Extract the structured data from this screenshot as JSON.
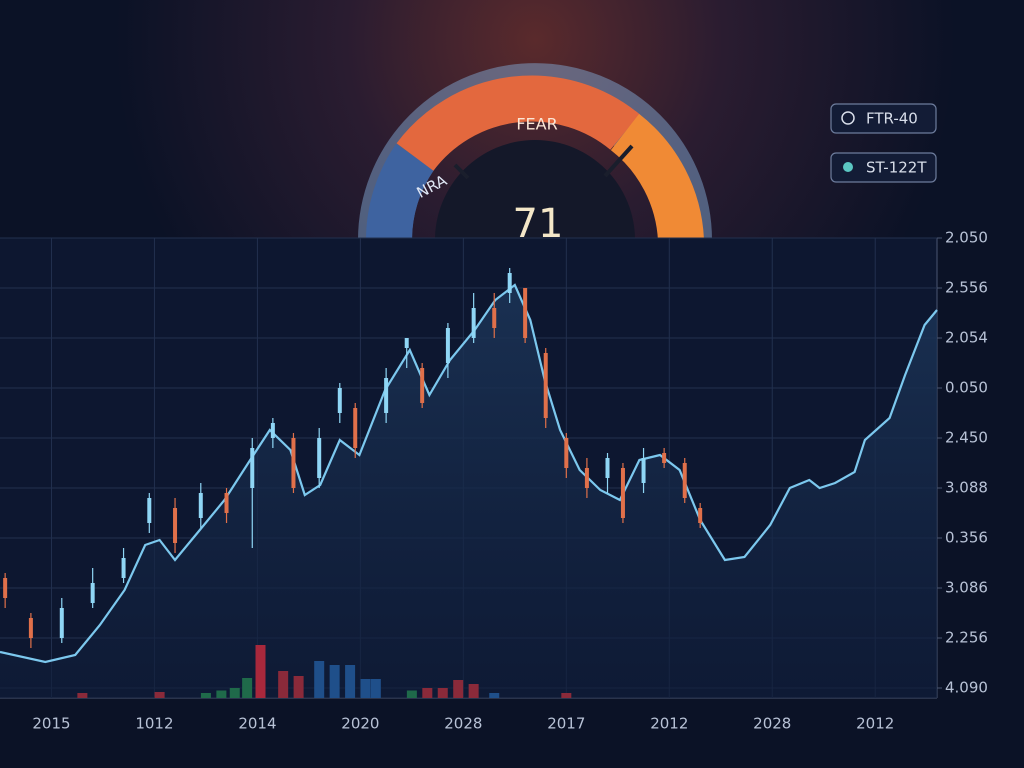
{
  "gauge": {
    "labels": [
      "NRA",
      "FEAR"
    ],
    "value": 71
  },
  "buttons": [
    "FTR-40",
    "ST-122T"
  ],
  "chart_data": {
    "type": "candlestick",
    "xlim": [
      -0.5,
      8.6
    ],
    "ylim": [
      -0.2,
      9
    ],
    "grid": true,
    "xticks": [
      {
        "value": 0,
        "label": "2015"
      },
      {
        "value": 1,
        "label": "1012"
      },
      {
        "value": 2,
        "label": "2014"
      },
      {
        "value": 3,
        "label": "2020"
      },
      {
        "value": 4,
        "label": "2028"
      },
      {
        "value": 5,
        "label": "2017"
      },
      {
        "value": 6,
        "label": "2012"
      },
      {
        "value": 7,
        "label": "2028"
      },
      {
        "value": 8,
        "label": "2012"
      }
    ],
    "yticks": [
      {
        "value": 9,
        "label": "2.050"
      },
      {
        "value": 8,
        "label": "2.556"
      },
      {
        "value": 7,
        "label": "2.054"
      },
      {
        "value": 6,
        "label": "0.050"
      },
      {
        "value": 5,
        "label": "2.450"
      },
      {
        "value": 4,
        "label": "3.088"
      },
      {
        "value": 3,
        "label": "0.356"
      },
      {
        "value": 2,
        "label": "3.086"
      },
      {
        "value": 1,
        "label": "2.256"
      },
      {
        "value": 0,
        "label": "4.090"
      }
    ],
    "line": {
      "color": "#7cc8ee",
      "x": [
        -0.5,
        -0.06,
        0.23,
        0.47,
        0.71,
        0.91,
        1.05,
        1.2,
        1.44,
        1.68,
        1.93,
        2.12,
        2.32,
        2.46,
        2.61,
        2.8,
        2.99,
        3.24,
        3.48,
        3.67,
        3.87,
        4.11,
        4.31,
        4.5,
        4.65,
        4.79,
        4.94,
        5.13,
        5.33,
        5.52,
        5.71,
        5.91,
        6.1,
        6.3,
        6.54,
        6.73,
        6.98,
        7.17,
        7.36,
        7.46,
        7.61,
        7.8,
        7.9,
        8.14,
        8.29,
        8.48,
        8.6
      ],
      "values": [
        0.72,
        0.52,
        0.66,
        1.26,
        1.96,
        2.86,
        2.96,
        2.56,
        3.16,
        3.76,
        4.56,
        5.16,
        4.76,
        3.86,
        4.06,
        4.96,
        4.66,
        5.96,
        6.76,
        5.86,
        6.56,
        7.16,
        7.76,
        8.06,
        7.36,
        6.16,
        5.16,
        4.36,
        3.96,
        3.76,
        4.56,
        4.66,
        4.36,
        3.36,
        2.56,
        2.62,
        3.26,
        4.0,
        4.16,
        4.0,
        4.1,
        4.32,
        4.96,
        5.4,
        6.26,
        7.26,
        7.56
      ]
    },
    "up_color": "#8fd6f5",
    "down_color": "#e0704a",
    "candles": {
      "x": [
        -0.45,
        -0.2,
        0.1,
        0.4,
        0.7,
        0.95,
        1.2,
        1.45,
        1.7,
        1.95,
        2.15,
        2.35,
        2.6,
        2.8,
        2.95,
        3.25,
        3.45,
        3.6,
        3.85,
        4.1,
        4.3,
        4.45,
        4.6,
        4.8,
        5.0,
        5.2,
        5.4,
        5.55,
        5.75,
        5.95,
        6.15,
        6.3
      ],
      "open": [
        2.2,
        1.4,
        1.0,
        1.7,
        2.2,
        3.3,
        3.6,
        3.4,
        3.9,
        4.0,
        5.0,
        5.0,
        4.2,
        5.5,
        5.6,
        5.5,
        6.8,
        6.4,
        6.5,
        7.0,
        7.6,
        7.9,
        8.0,
        6.7,
        5.0,
        4.4,
        4.2,
        4.4,
        4.1,
        4.7,
        4.5,
        3.6
      ],
      "close": [
        1.8,
        1.0,
        1.6,
        2.1,
        2.6,
        3.8,
        2.9,
        3.9,
        3.5,
        4.8,
        5.3,
        4.0,
        5.0,
        6.0,
        4.8,
        6.2,
        7.0,
        5.7,
        7.2,
        7.6,
        7.2,
        8.3,
        7.0,
        5.4,
        4.4,
        4.0,
        4.6,
        3.4,
        4.6,
        4.5,
        3.8,
        3.3
      ],
      "high": [
        2.3,
        1.5,
        1.8,
        2.4,
        2.8,
        3.9,
        3.8,
        4.1,
        4.0,
        5.0,
        5.4,
        5.1,
        5.2,
        6.1,
        5.7,
        6.4,
        7.0,
        6.5,
        7.3,
        7.9,
        7.9,
        8.4,
        8.0,
        6.8,
        5.1,
        4.6,
        4.7,
        4.5,
        4.8,
        4.8,
        4.6,
        3.7
      ],
      "low": [
        1.6,
        0.8,
        0.9,
        1.6,
        2.1,
        3.1,
        2.7,
        3.2,
        3.3,
        2.8,
        4.8,
        3.9,
        4.0,
        5.3,
        4.6,
        5.3,
        6.4,
        5.6,
        6.2,
        6.9,
        7.0,
        7.7,
        6.9,
        5.2,
        4.2,
        3.8,
        3.9,
        3.3,
        3.9,
        4.4,
        3.7,
        3.2
      ]
    },
    "volume": {
      "x": [
        0.3,
        1.05,
        1.5,
        1.65,
        1.78,
        1.9,
        2.03,
        2.25,
        2.4,
        2.6,
        2.75,
        2.9,
        3.05,
        3.15,
        3.5,
        3.65,
        3.8,
        3.95,
        4.1,
        4.3,
        5.0
      ],
      "values": [
        -0.1,
        -0.08,
        -0.1,
        -0.05,
        0.0,
        0.2,
        0.86,
        0.34,
        0.24,
        0.54,
        0.46,
        0.46,
        0.18,
        0.18,
        -0.05,
        0.0,
        0.0,
        0.16,
        0.08,
        -0.1,
        -0.1
      ],
      "colors": [
        "#8a2a3a",
        "#8a2a3a",
        "#1f6a4a",
        "#1f6a4a",
        "#1f6a4a",
        "#1f6a4a",
        "#a8283c",
        "#8a2a3a",
        "#8a2a3a",
        "#1f4f8a",
        "#1f4f8a",
        "#1f4f8a",
        "#1f4f8a",
        "#1f4f8a",
        "#1f6a4a",
        "#8a2a3a",
        "#8a2a3a",
        "#8a2a3a",
        "#8a2a3a",
        "#1f4f8a",
        "#8a2a3a"
      ]
    }
  }
}
